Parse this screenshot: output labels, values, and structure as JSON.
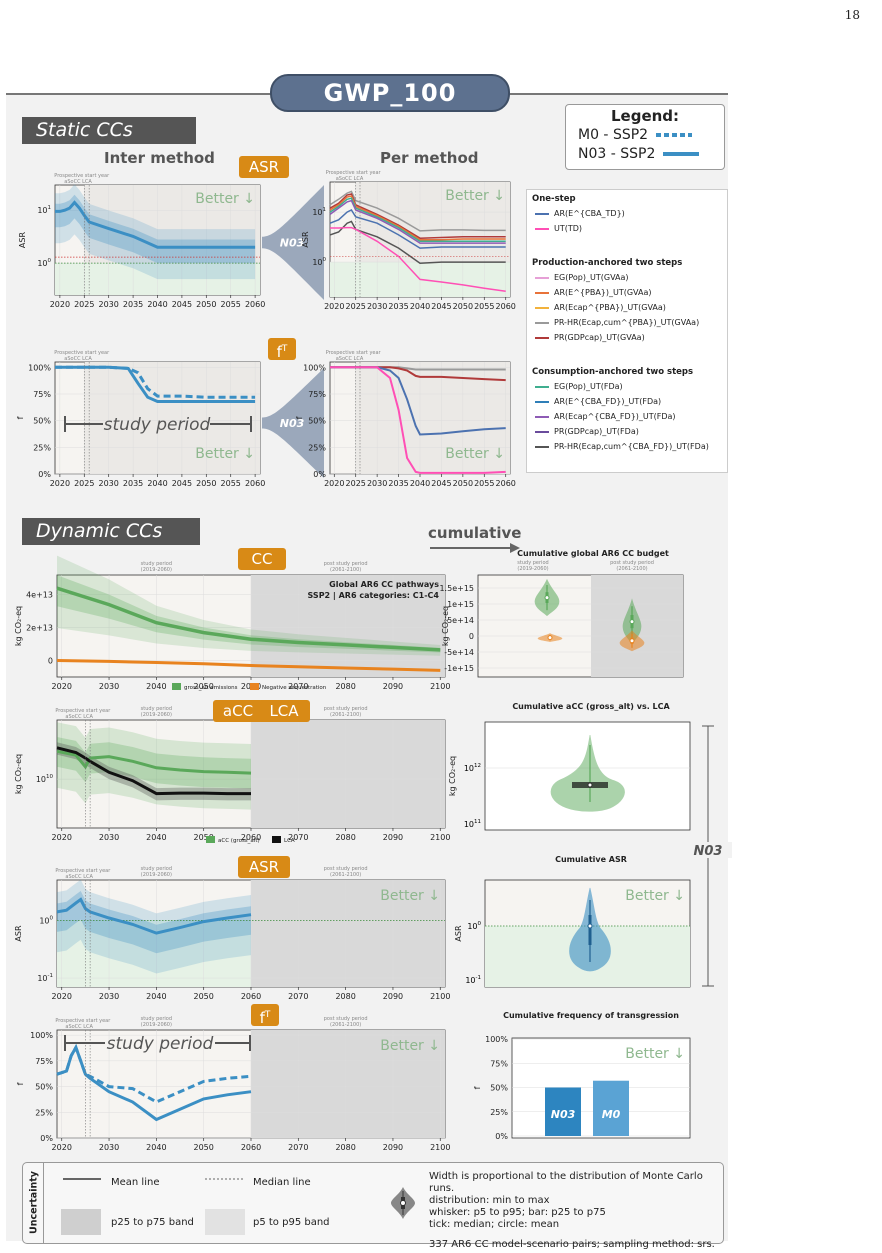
{
  "page_number": "18",
  "title": "GWP_100",
  "static_section": "Static CCs",
  "dynamic_section": "Dynamic CCs",
  "inter_method": "Inter method",
  "per_method": "Per method",
  "cumulative": "cumulative",
  "tags": {
    "asr": "ASR",
    "ft": "f",
    "ft_sup": "T",
    "cc": "CC",
    "acc": "aCC",
    "lca": "LCA"
  },
  "better": "Better",
  "study_period": "study period",
  "n03_badge": "N03",
  "n03_right": "N03",
  "legend": {
    "title": "Legend:",
    "m0": "M0 - SSP2",
    "n03": "N03 - SSP2"
  },
  "colors": {
    "blue": "#3b8fc4",
    "green": "#5aa85a",
    "orange": "#e8831f",
    "black": "#111111",
    "tag": "#d88a16"
  },
  "method_legend": {
    "groups": [
      {
        "name": "One-step",
        "items": [
          {
            "label": "AR(E^{CBA_TD})",
            "color": "#4c72b0"
          },
          {
            "label": "UT(TD)",
            "color": "#ff4fb5"
          }
        ]
      },
      {
        "name": "Production-anchored two steps",
        "items": [
          {
            "label": "EG(Pop)_UT(GVAa)",
            "color": "#e6a0d6"
          },
          {
            "label": "AR(E^{PBA})_UT(GVAa)",
            "color": "#e8733a"
          },
          {
            "label": "AR(Ecap^{PBA})_UT(GVAa)",
            "color": "#f2b23c"
          },
          {
            "label": "PR-HR(Ecap,cum^{PBA})_UT(GVAa)",
            "color": "#9a9a9a"
          },
          {
            "label": "PR(GDPcap)_UT(GVAa)",
            "color": "#b03a3a"
          }
        ]
      },
      {
        "name": "Consumption-anchored two steps",
        "items": [
          {
            "label": "EG(Pop)_UT(FDa)",
            "color": "#3fae8f"
          },
          {
            "label": "AR(E^{CBA_FD})_UT(FDa)",
            "color": "#2f7fb8"
          },
          {
            "label": "AR(Ecap^{CBA_FD})_UT(FDa)",
            "color": "#8e5bb5"
          },
          {
            "label": "PR(GDPcap)_UT(FDa)",
            "color": "#6a4c9c"
          },
          {
            "label": "PR-HR(Ecap,cum^{CBA_FD})_UT(FDa)",
            "color": "#555555"
          }
        ]
      }
    ]
  },
  "annot": {
    "prospective": "Prospective start year",
    "asocc_lca": "aSoCC  LCA",
    "study_period_small": "study period",
    "study_years": "(2019-2060)",
    "post_study": "post study period",
    "post_years": "(2061-2100)",
    "cc_box_line1": "Global AR6 CC pathways",
    "cc_box_line2": "SSP2 | AR6 categories: C1-C4"
  },
  "cc_legend": {
    "gross": "gross_alt emissions",
    "neg": "Negative sequestration"
  },
  "acc_legend": {
    "acc": "aCC (gross_alt)",
    "lca": "LCA"
  },
  "right_titles": {
    "cc": "Cumulative global AR6 CC budget",
    "acc": "Cumulative aCC (gross_alt) vs. LCA",
    "asr": "Cumulative ASR",
    "ft": "Cumulative frequency of transgression"
  },
  "bar_labels": {
    "n03": "N03",
    "m0": "M0"
  },
  "uncertainty": {
    "title": "Uncertainty",
    "mean": "Mean line",
    "median": "Median line",
    "p25": "p25 to p75 band",
    "p5": "p5 to p95 band",
    "desc1": "Width is proportional to the distribution of Monte Carlo runs.",
    "desc2": "distribution: min to max",
    "desc3": "whisker: p5 to p95; bar: p25 to p75",
    "desc4": "tick: median; circle: mean",
    "desc5": "337 AR6 CC model-scenario pairs; sampling method: srs."
  },
  "axis_labels": {
    "asr": "ASR",
    "ft": "f",
    "kg": "kg CO₂-eq"
  },
  "chart_data": [
    {
      "id": "static_asr_inter",
      "type": "line",
      "x": [
        2019,
        2020,
        2021,
        2022,
        2023,
        2024,
        2025,
        2026,
        2030,
        2035,
        2040,
        2045,
        2050,
        2055,
        2060
      ],
      "series": [
        {
          "name": "N03",
          "values": [
            9.5,
            9.5,
            10,
            11,
            14,
            11,
            8,
            6,
            4.5,
            3.2,
            2.0,
            2.0,
            2.0,
            2.0,
            2.0
          ]
        }
      ],
      "yscale": "log",
      "ylim": [
        0.25,
        30
      ],
      "yticks": [
        "10^0",
        "10^1"
      ],
      "xlim": [
        2019,
        2060
      ],
      "xticks": [
        "2020",
        "2025",
        "2030",
        "2035",
        "2040",
        "2045",
        "2050",
        "2055",
        "2060"
      ]
    },
    {
      "id": "static_asr_per",
      "type": "line",
      "x": [
        2019,
        2021,
        2023,
        2024,
        2025,
        2030,
        2035,
        2040,
        2045,
        2050,
        2055,
        2060
      ],
      "series": [
        {
          "name": "PR-HR(Ecap,cum^{PBA})_UT(GVAa)",
          "values": [
            14,
            18,
            24,
            26,
            17,
            12,
            7.5,
            4.2,
            4.4,
            4.4,
            4.3,
            4.3
          ]
        },
        {
          "name": "PR(GDPcap)_UT(GVAa)",
          "values": [
            12,
            15,
            22,
            23,
            14,
            9,
            5.5,
            3.0,
            3.1,
            3.2,
            3.2,
            3.2
          ]
        },
        {
          "name": "AR(E^{PBA})_UT(GVAa)",
          "values": [
            11,
            14,
            20,
            21,
            13,
            8.5,
            5.2,
            2.8,
            2.8,
            2.9,
            2.9,
            2.9
          ]
        },
        {
          "name": "EG(Pop)_UT(FDa)",
          "values": [
            10,
            13,
            18,
            19,
            12,
            8,
            4.9,
            2.6,
            2.6,
            2.6,
            2.6,
            2.6
          ]
        },
        {
          "name": "AR(Ecap^{CBA_FD})_UT(FDa)",
          "values": [
            9,
            12,
            16,
            17,
            11,
            7.5,
            4.5,
            2.4,
            2.4,
            2.4,
            2.4,
            2.4
          ]
        },
        {
          "name": "AR(E^{CBA_TD})",
          "values": [
            6,
            7,
            10,
            11,
            8,
            6,
            3.5,
            1.9,
            2.0,
            2.0,
            2.0,
            2.0
          ]
        },
        {
          "name": "PR(GDPcap)_UT(FDa)",
          "values": [
            3.5,
            4,
            6,
            6.5,
            4.5,
            3.2,
            1.9,
            0.95,
            1.0,
            1.0,
            1.0,
            1.0
          ]
        },
        {
          "name": "UT(TD)",
          "values": [
            4.8,
            4.8,
            4.9,
            4.9,
            4.5,
            2.6,
            1.3,
            0.45,
            0.4,
            0.35,
            0.3,
            0.26
          ]
        }
      ],
      "yscale": "log",
      "ylim": [
        0.2,
        40
      ],
      "yticks": [
        "10^0",
        "10^1"
      ],
      "xlim": [
        2019,
        2060
      ],
      "xticks": [
        "2020",
        "2025",
        "2030",
        "2035",
        "2040",
        "2045",
        "2050",
        "2055",
        "2060"
      ]
    },
    {
      "id": "static_ft_inter",
      "type": "line",
      "x": [
        2019,
        2025,
        2030,
        2034,
        2036,
        2038,
        2040,
        2045,
        2050,
        2055,
        2060
      ],
      "series": [
        {
          "name": "N03",
          "values": [
            100,
            100,
            100,
            99,
            85,
            72,
            68,
            68,
            68,
            68,
            68
          ]
        },
        {
          "name": "M0",
          "values": [
            100,
            100,
            100,
            99,
            95,
            80,
            73,
            73,
            72,
            72,
            72
          ]
        }
      ],
      "ylim": [
        0,
        100
      ],
      "yticks": [
        "0%",
        "25%",
        "50%",
        "75%",
        "100%"
      ],
      "xlim": [
        2019,
        2060
      ],
      "xticks": [
        "2020",
        "2025",
        "2030",
        "2035",
        "2040",
        "2045",
        "2050",
        "2055",
        "2060"
      ]
    },
    {
      "id": "static_ft_per",
      "type": "line",
      "x": [
        2019,
        2030,
        2033,
        2035,
        2037,
        2039,
        2040,
        2045,
        2050,
        2055,
        2060
      ],
      "series": [
        {
          "name": "PR-HR(Ecap,cum^{PBA})_UT(GVAa)",
          "values": [
            100,
            100,
            100,
            100,
            99,
            98,
            98,
            98,
            98,
            98,
            98
          ]
        },
        {
          "name": "PR(GDPcap)_UT(GVAa)",
          "values": [
            100,
            100,
            100,
            99,
            97,
            92,
            91,
            91,
            90,
            89,
            88
          ]
        },
        {
          "name": "AR(E^{CBA_TD})",
          "values": [
            100,
            100,
            97,
            90,
            70,
            45,
            37,
            38,
            40,
            42,
            43
          ]
        },
        {
          "name": "UT(TD)",
          "values": [
            100,
            100,
            90,
            60,
            15,
            2,
            1,
            1,
            1,
            1,
            2
          ]
        }
      ],
      "ylim": [
        0,
        100
      ],
      "yticks": [
        "0%",
        "25%",
        "50%",
        "75%",
        "100%"
      ],
      "xlim": [
        2019,
        2060
      ],
      "xticks": [
        "2020",
        "2025",
        "2030",
        "2035",
        "2040",
        "2045",
        "2050",
        "2055",
        "2060"
      ]
    },
    {
      "id": "dyn_cc",
      "type": "line",
      "x": [
        2019,
        2030,
        2040,
        2050,
        2060,
        2070,
        2080,
        2090,
        2100
      ],
      "series": [
        {
          "name": "gross_alt emissions",
          "values": [
            44000000000000.0,
            34000000000000.0,
            23000000000000.0,
            17000000000000.0,
            13000000000000.0,
            11000000000000.0,
            9500000000000.0,
            8000000000000.0,
            6500000000000.0
          ]
        },
        {
          "name": "Negative sequestration",
          "values": [
            0,
            -500000000000.0,
            -1200000000000.0,
            -2000000000000.0,
            -3000000000000.0,
            -3800000000000.0,
            -4500000000000.0,
            -5200000000000.0,
            -6000000000000.0
          ]
        }
      ],
      "ylim": [
        -10000000000000.0,
        52000000000000.0
      ],
      "yticks": [
        "0",
        "2e+13",
        "4e+13"
      ],
      "xlim": [
        2019,
        2101
      ],
      "xticks": [
        "2020",
        "2030",
        "2040",
        "2050",
        "2060",
        "2070",
        "2080",
        "2090",
        "2100"
      ]
    },
    {
      "id": "dyn_acc",
      "type": "line",
      "x": [
        2019,
        2023,
        2025,
        2026,
        2030,
        2035,
        2040,
        2045,
        2050,
        2055,
        2060
      ],
      "series": [
        {
          "name": "aCC (gross_alt)",
          "values": [
            25000000000.0,
            22000000000.0,
            15000000000.0,
            20000000000.0,
            21000000000.0,
            18000000000.0,
            14500000000.0,
            13500000000.0,
            12800000000.0,
            12500000000.0,
            12200000000.0
          ]
        },
        {
          "name": "LCA",
          "values": [
            28000000000.0,
            24000000000.0,
            20000000000.0,
            18000000000.0,
            12500000000.0,
            9500000000.0,
            6200000000.0,
            6300000000.0,
            6300000000.0,
            6200000000.0,
            6200000000.0
          ]
        }
      ],
      "yscale": "log",
      "yticks": [
        "10^10"
      ],
      "xlim": [
        2019,
        2101
      ],
      "xticks": [
        "2020",
        "2030",
        "2040",
        "2050",
        "2060",
        "2070",
        "2080",
        "2090",
        "2100"
      ]
    },
    {
      "id": "dyn_asr",
      "type": "line",
      "x": [
        2019,
        2021,
        2023,
        2024,
        2025,
        2026,
        2030,
        2035,
        2040,
        2045,
        2050,
        2055,
        2060
      ],
      "series": [
        {
          "name": "N03",
          "values": [
            1.4,
            1.5,
            2.0,
            2.3,
            1.6,
            1.4,
            1.1,
            0.85,
            0.6,
            0.75,
            0.95,
            1.1,
            1.25
          ]
        }
      ],
      "yscale": "log",
      "yticks": [
        "10^-1",
        "10^0"
      ],
      "xlim": [
        2019,
        2101
      ],
      "xticks": [
        "2020",
        "2030",
        "2040",
        "2050",
        "2060",
        "2070",
        "2080",
        "2090",
        "2100"
      ]
    },
    {
      "id": "dyn_ft",
      "type": "line",
      "x": [
        2019,
        2021,
        2022,
        2023,
        2024,
        2025,
        2026,
        2030,
        2035,
        2040,
        2045,
        2050,
        2055,
        2060
      ],
      "series": [
        {
          "name": "N03",
          "values": [
            62,
            65,
            80,
            88,
            75,
            62,
            58,
            45,
            35,
            18,
            28,
            38,
            42,
            45
          ]
        },
        {
          "name": "M0",
          "values": [
            62,
            65,
            80,
            88,
            75,
            62,
            60,
            50,
            48,
            35,
            45,
            55,
            58,
            60
          ]
        }
      ],
      "ylim": [
        0,
        100
      ],
      "yticks": [
        "0%",
        "25%",
        "50%",
        "75%",
        "100%"
      ],
      "xlim": [
        2019,
        2101
      ],
      "xticks": [
        "2020",
        "2030",
        "2040",
        "2050",
        "2060",
        "2070",
        "2080",
        "2090",
        "2100"
      ]
    },
    {
      "id": "cum_cc",
      "type": "violin",
      "categories": [
        "study period",
        "post study period"
      ],
      "series": [
        {
          "name": "gross_alt emissions",
          "values": [
            1200000000000000.0,
            450000000000000.0
          ]
        },
        {
          "name": "Negative sequestration",
          "values": [
            -50000000000000.0,
            -150000000000000.0
          ]
        }
      ],
      "yticks": [
        "-1e+15",
        "-5e+14",
        "0",
        "5e+14",
        "1e+15",
        "1.5e+15"
      ]
    },
    {
      "id": "cum_acc",
      "type": "violin",
      "series": [
        {
          "name": "aCC (gross_alt)",
          "values": [
            600000000000.0
          ]
        },
        {
          "name": "LCA",
          "values": [
            550000000000.0
          ]
        }
      ],
      "yscale": "log",
      "yticks": [
        "10^11",
        "10^12"
      ]
    },
    {
      "id": "cum_asr",
      "type": "violin",
      "series": [
        {
          "name": "N03",
          "values": [
            1.0
          ]
        }
      ],
      "yscale": "log",
      "yticks": [
        "10^-1",
        "10^0"
      ]
    },
    {
      "id": "cum_ft",
      "type": "bar",
      "categories": [
        "N03",
        "M0"
      ],
      "values": [
        50,
        57
      ],
      "ylim": [
        0,
        100
      ],
      "yticks": [
        "0%",
        "25%",
        "50%",
        "75%",
        "100%"
      ]
    }
  ]
}
